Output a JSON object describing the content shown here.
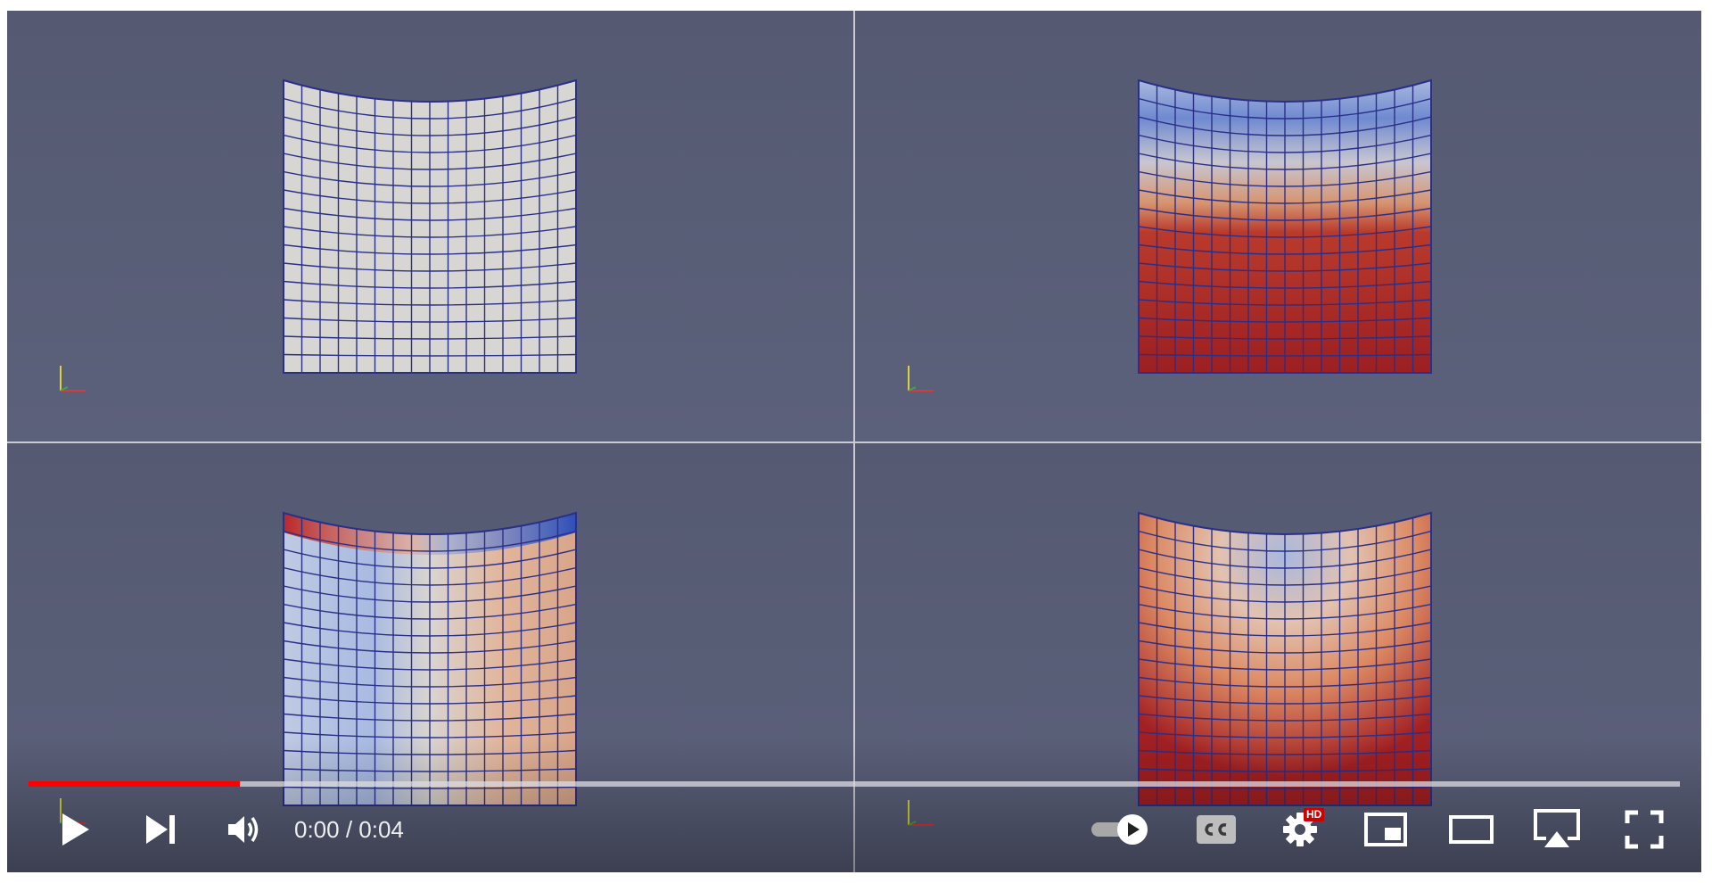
{
  "player": {
    "current_time": "0:00",
    "separator": " / ",
    "duration": "0:04",
    "progress_fraction": 0.128,
    "hd_badge": "HD",
    "accent_color": "#ff0000"
  },
  "controls": {
    "play": "play-icon",
    "next": "skip-next-icon",
    "volume": "volume-icon",
    "autoplay": "autoplay-toggle-icon",
    "captions": "closed-captions-icon",
    "settings": "gear-icon",
    "miniplayer": "miniplayer-icon",
    "theater": "theater-mode-icon",
    "airplay": "airplay-icon",
    "fullscreen": "fullscreen-icon"
  },
  "panes": [
    {
      "name": "top-left",
      "coloring": "uniform-white"
    },
    {
      "name": "top-right",
      "coloring": "blue-to-red-vertical"
    },
    {
      "name": "bottom-left",
      "coloring": "red-blue-horizontal"
    },
    {
      "name": "bottom-right",
      "coloring": "red-edges-blue-center"
    }
  ]
}
